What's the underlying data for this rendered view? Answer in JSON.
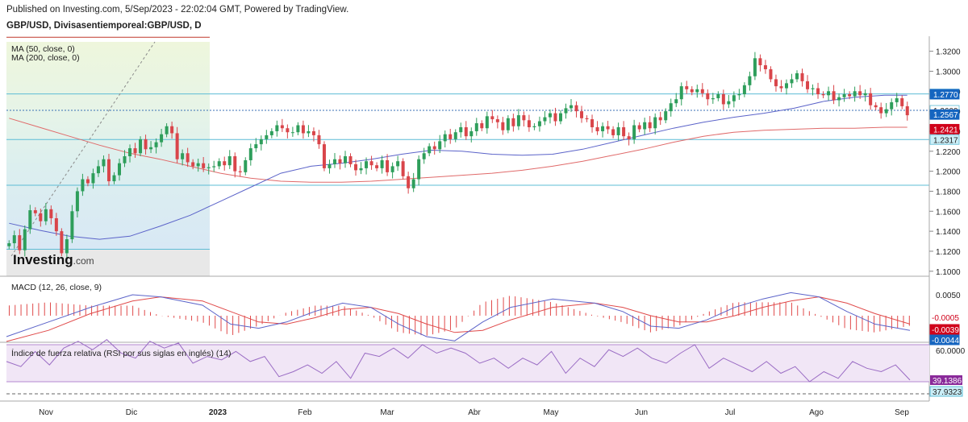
{
  "header": {
    "published": "Published on Investing.com, 5/Sep/2023 - 22:02:04 GMT, Powered by TradingView.",
    "symbol": "GBP/USD, Divisasentiemporeal:GBP/USD, D"
  },
  "legend": {
    "ma50": "MA (50, close, 0)",
    "ma200": "MA (200, close, 0)"
  },
  "logo": {
    "text": "Investing",
    "suffix": ".com"
  },
  "colors": {
    "up": "#2e9e5b",
    "down": "#d9454a",
    "ma50": "#5b63c9",
    "ma200": "#e06a6a",
    "hline": "#5cbcd6",
    "macd": "#5b63c9",
    "signal": "#e04a4a",
    "rsi": "#9a6cc4",
    "rsi_bg": "#f1e6f6",
    "label_blue": "#1565c0",
    "label_red": "#d0021b",
    "label_cyan": "#cbeef7",
    "label_purple": "#8a2a9a"
  },
  "chart_data": [
    {
      "type": "candlestick",
      "title": "GBP/USD, Divisasentiemporeal:GBP/USD, D",
      "x_ticks": [
        "Nov",
        "Dic",
        "2023",
        "Feb",
        "Mar",
        "Abr",
        "May",
        "Jun",
        "Jul",
        "Ago",
        "Sep"
      ],
      "y_ticks": [
        "1.3200",
        "1.3000",
        "1.2800",
        "1.2600",
        "1.2400",
        "1.2200",
        "1.2000",
        "1.1800",
        "1.1600",
        "1.1400",
        "1.1200",
        "1.1000"
      ],
      "ylim": [
        1.095,
        1.335
      ],
      "price_labels": [
        {
          "value": "1.2773",
          "style": "line"
        },
        {
          "value": "1.2770",
          "style": "blue"
        },
        {
          "value": "1.2609",
          "style": "line"
        },
        {
          "value": "1.2567",
          "style": "blue"
        },
        {
          "value": "1.2421",
          "style": "red"
        },
        {
          "value": "1.2317",
          "style": "cyan"
        }
      ],
      "horizontal_levels": [
        1.334,
        1.2773,
        1.2609,
        1.2317,
        1.186,
        1.122
      ],
      "ma50": {
        "name": "MA (50, close, 0)",
        "points": [
          [
            0,
            1.148
          ],
          [
            20,
            1.141
          ],
          [
            40,
            1.135
          ],
          [
            60,
            1.132
          ],
          [
            80,
            1.135
          ],
          [
            100,
            1.145
          ],
          [
            120,
            1.156
          ],
          [
            140,
            1.17
          ],
          [
            160,
            1.184
          ],
          [
            180,
            1.198
          ],
          [
            200,
            1.205
          ],
          [
            220,
            1.208
          ],
          [
            240,
            1.212
          ],
          [
            260,
            1.217
          ],
          [
            280,
            1.221
          ],
          [
            300,
            1.22
          ],
          [
            320,
            1.217
          ],
          [
            340,
            1.216
          ],
          [
            360,
            1.217
          ],
          [
            380,
            1.222
          ],
          [
            400,
            1.229
          ],
          [
            420,
            1.236
          ],
          [
            440,
            1.243
          ],
          [
            460,
            1.249
          ],
          [
            480,
            1.254
          ],
          [
            500,
            1.258
          ],
          [
            520,
            1.263
          ],
          [
            540,
            1.27
          ],
          [
            560,
            1.274
          ],
          [
            580,
            1.276
          ],
          [
            595,
            1.276
          ]
        ]
      },
      "ma200": {
        "name": "MA (200, close, 0)",
        "points": [
          [
            0,
            1.253
          ],
          [
            20,
            1.244
          ],
          [
            40,
            1.235
          ],
          [
            60,
            1.226
          ],
          [
            80,
            1.218
          ],
          [
            100,
            1.212
          ],
          [
            120,
            1.205
          ],
          [
            140,
            1.198
          ],
          [
            160,
            1.193
          ],
          [
            180,
            1.19
          ],
          [
            200,
            1.189
          ],
          [
            220,
            1.189
          ],
          [
            240,
            1.19
          ],
          [
            260,
            1.192
          ],
          [
            280,
            1.194
          ],
          [
            300,
            1.196
          ],
          [
            320,
            1.198
          ],
          [
            340,
            1.201
          ],
          [
            360,
            1.205
          ],
          [
            380,
            1.21
          ],
          [
            400,
            1.216
          ],
          [
            420,
            1.222
          ],
          [
            440,
            1.229
          ],
          [
            460,
            1.235
          ],
          [
            480,
            1.239
          ],
          [
            500,
            1.241
          ],
          [
            520,
            1.242
          ],
          [
            540,
            1.243
          ],
          [
            560,
            1.243
          ],
          [
            580,
            1.244
          ],
          [
            595,
            1.244
          ]
        ]
      },
      "closes": [
        1.128,
        1.136,
        1.121,
        1.142,
        1.161,
        1.158,
        1.15,
        1.162,
        1.153,
        1.14,
        1.118,
        1.132,
        1.16,
        1.18,
        1.192,
        1.188,
        1.198,
        1.205,
        1.212,
        1.19,
        1.196,
        1.208,
        1.215,
        1.223,
        1.218,
        1.232,
        1.222,
        1.224,
        1.229,
        1.237,
        1.245,
        1.238,
        1.212,
        1.218,
        1.209,
        1.205,
        1.208,
        1.203,
        1.204,
        1.205,
        1.21,
        1.206,
        1.215,
        1.2,
        1.199,
        1.211,
        1.223,
        1.227,
        1.232,
        1.236,
        1.24,
        1.246,
        1.243,
        1.239,
        1.239,
        1.246,
        1.238,
        1.24,
        1.236,
        1.227,
        1.203,
        1.207,
        1.212,
        1.208,
        1.215,
        1.207,
        1.201,
        1.203,
        1.21,
        1.206,
        1.203,
        1.211,
        1.199,
        1.205,
        1.21,
        1.195,
        1.183,
        1.192,
        1.212,
        1.218,
        1.225,
        1.222,
        1.23,
        1.237,
        1.232,
        1.239,
        1.244,
        1.235,
        1.24,
        1.248,
        1.243,
        1.255,
        1.252,
        1.249,
        1.241,
        1.253,
        1.245,
        1.256,
        1.251,
        1.244,
        1.245,
        1.25,
        1.254,
        1.258,
        1.25,
        1.258,
        1.263,
        1.266,
        1.26,
        1.253,
        1.252,
        1.244,
        1.24,
        1.245,
        1.242,
        1.236,
        1.244,
        1.235,
        1.232,
        1.246,
        1.242,
        1.249,
        1.243,
        1.254,
        1.251,
        1.26,
        1.268,
        1.272,
        1.285,
        1.282,
        1.279,
        1.282,
        1.278,
        1.272,
        1.273,
        1.277,
        1.267,
        1.27,
        1.276,
        1.277,
        1.286,
        1.295,
        1.313,
        1.306,
        1.302,
        1.292,
        1.285,
        1.283,
        1.288,
        1.292,
        1.298,
        1.29,
        1.282,
        1.283,
        1.277,
        1.276,
        1.28,
        1.271,
        1.274,
        1.277,
        1.275,
        1.28,
        1.276,
        1.278,
        1.266,
        1.264,
        1.258,
        1.262,
        1.269,
        1.273,
        1.265,
        1.256
      ]
    },
    {
      "type": "line",
      "title": "MACD (12, 26, close, 9)",
      "y_ticks": [
        "0.0050"
      ],
      "series": [
        {
          "name": "-0.0005",
          "values_label": "-0.0005"
        },
        {
          "name": "-0.0039",
          "values_label": "-0.0039"
        },
        {
          "name": "-0.0044",
          "values_label": "-0.0044"
        }
      ],
      "macd": [
        [
          0,
          -0.01
        ],
        [
          30,
          -0.003
        ],
        [
          60,
          0.004
        ],
        [
          90,
          0.01
        ],
        [
          110,
          0.009
        ],
        [
          140,
          0.005
        ],
        [
          160,
          -0.004
        ],
        [
          180,
          -0.006
        ],
        [
          200,
          -0.003
        ],
        [
          220,
          0.002
        ],
        [
          240,
          0.006
        ],
        [
          260,
          0.004
        ],
        [
          280,
          -0.004
        ],
        [
          300,
          -0.01
        ],
        [
          320,
          -0.012
        ],
        [
          340,
          -0.003
        ],
        [
          360,
          0.004
        ],
        [
          390,
          0.008
        ],
        [
          420,
          0.006
        ],
        [
          440,
          0.002
        ],
        [
          460,
          -0.005
        ],
        [
          480,
          -0.006
        ],
        [
          500,
          -0.002
        ],
        [
          520,
          0.004
        ],
        [
          540,
          0.008
        ],
        [
          560,
          0.011
        ],
        [
          580,
          0.009
        ],
        [
          600,
          0.002
        ],
        [
          620,
          -0.004
        ],
        [
          645,
          -0.007
        ]
      ],
      "signal": [
        [
          0,
          -0.013
        ],
        [
          30,
          -0.007
        ],
        [
          60,
          0.001
        ],
        [
          90,
          0.007
        ],
        [
          110,
          0.009
        ],
        [
          140,
          0.007
        ],
        [
          160,
          0.002
        ],
        [
          180,
          -0.003
        ],
        [
          200,
          -0.004
        ],
        [
          220,
          -0.001
        ],
        [
          240,
          0.003
        ],
        [
          260,
          0.004
        ],
        [
          280,
          0.001
        ],
        [
          300,
          -0.004
        ],
        [
          320,
          -0.008
        ],
        [
          340,
          -0.007
        ],
        [
          360,
          -0.002
        ],
        [
          390,
          0.004
        ],
        [
          420,
          0.006
        ],
        [
          440,
          0.004
        ],
        [
          460,
          0.0
        ],
        [
          480,
          -0.003
        ],
        [
          500,
          -0.003
        ],
        [
          520,
          0.0
        ],
        [
          540,
          0.004
        ],
        [
          560,
          0.007
        ],
        [
          580,
          0.009
        ],
        [
          600,
          0.006
        ],
        [
          620,
          0.001
        ],
        [
          645,
          -0.004
        ]
      ]
    },
    {
      "type": "line",
      "title": "Índice de fuerza relativa (RSI por sus siglas en inglés) (14)",
      "y_ticks": [
        "60.0000"
      ],
      "series": [
        {
          "name": "39.1386"
        },
        {
          "name": "37.9323"
        }
      ],
      "rsi": [
        [
          0,
          50
        ],
        [
          10,
          47
        ],
        [
          20,
          56
        ],
        [
          30,
          48
        ],
        [
          40,
          58
        ],
        [
          50,
          62
        ],
        [
          60,
          57
        ],
        [
          70,
          63
        ],
        [
          80,
          55
        ],
        [
          90,
          52
        ],
        [
          100,
          62
        ],
        [
          110,
          58
        ],
        [
          120,
          61
        ],
        [
          130,
          49
        ],
        [
          140,
          53
        ],
        [
          150,
          51
        ],
        [
          160,
          56
        ],
        [
          170,
          50
        ],
        [
          180,
          53
        ],
        [
          190,
          41
        ],
        [
          200,
          44
        ],
        [
          210,
          48
        ],
        [
          220,
          43
        ],
        [
          230,
          50
        ],
        [
          240,
          40
        ],
        [
          250,
          55
        ],
        [
          260,
          53
        ],
        [
          270,
          58
        ],
        [
          280,
          52
        ],
        [
          290,
          60
        ],
        [
          300,
          55
        ],
        [
          310,
          58
        ],
        [
          320,
          55
        ],
        [
          330,
          49
        ],
        [
          340,
          52
        ],
        [
          350,
          46
        ],
        [
          360,
          52
        ],
        [
          370,
          48
        ],
        [
          380,
          56
        ],
        [
          390,
          43
        ],
        [
          400,
          52
        ],
        [
          410,
          47
        ],
        [
          420,
          57
        ],
        [
          430,
          53
        ],
        [
          440,
          58
        ],
        [
          450,
          52
        ],
        [
          460,
          49
        ],
        [
          470,
          55
        ],
        [
          480,
          60
        ],
        [
          490,
          46
        ],
        [
          500,
          52
        ],
        [
          510,
          48
        ],
        [
          520,
          44
        ],
        [
          530,
          50
        ],
        [
          540,
          43
        ],
        [
          550,
          47
        ],
        [
          560,
          38
        ],
        [
          570,
          44
        ],
        [
          580,
          40
        ],
        [
          590,
          50
        ],
        [
          600,
          46
        ],
        [
          610,
          44
        ],
        [
          620,
          48
        ],
        [
          630,
          39
        ]
      ]
    }
  ],
  "bottom_axis_labels": [
    "Nov",
    "Dic",
    "2023",
    "Feb",
    "Mar",
    "Abr",
    "May",
    "Jun",
    "Jul",
    "Ago",
    "Sep"
  ]
}
